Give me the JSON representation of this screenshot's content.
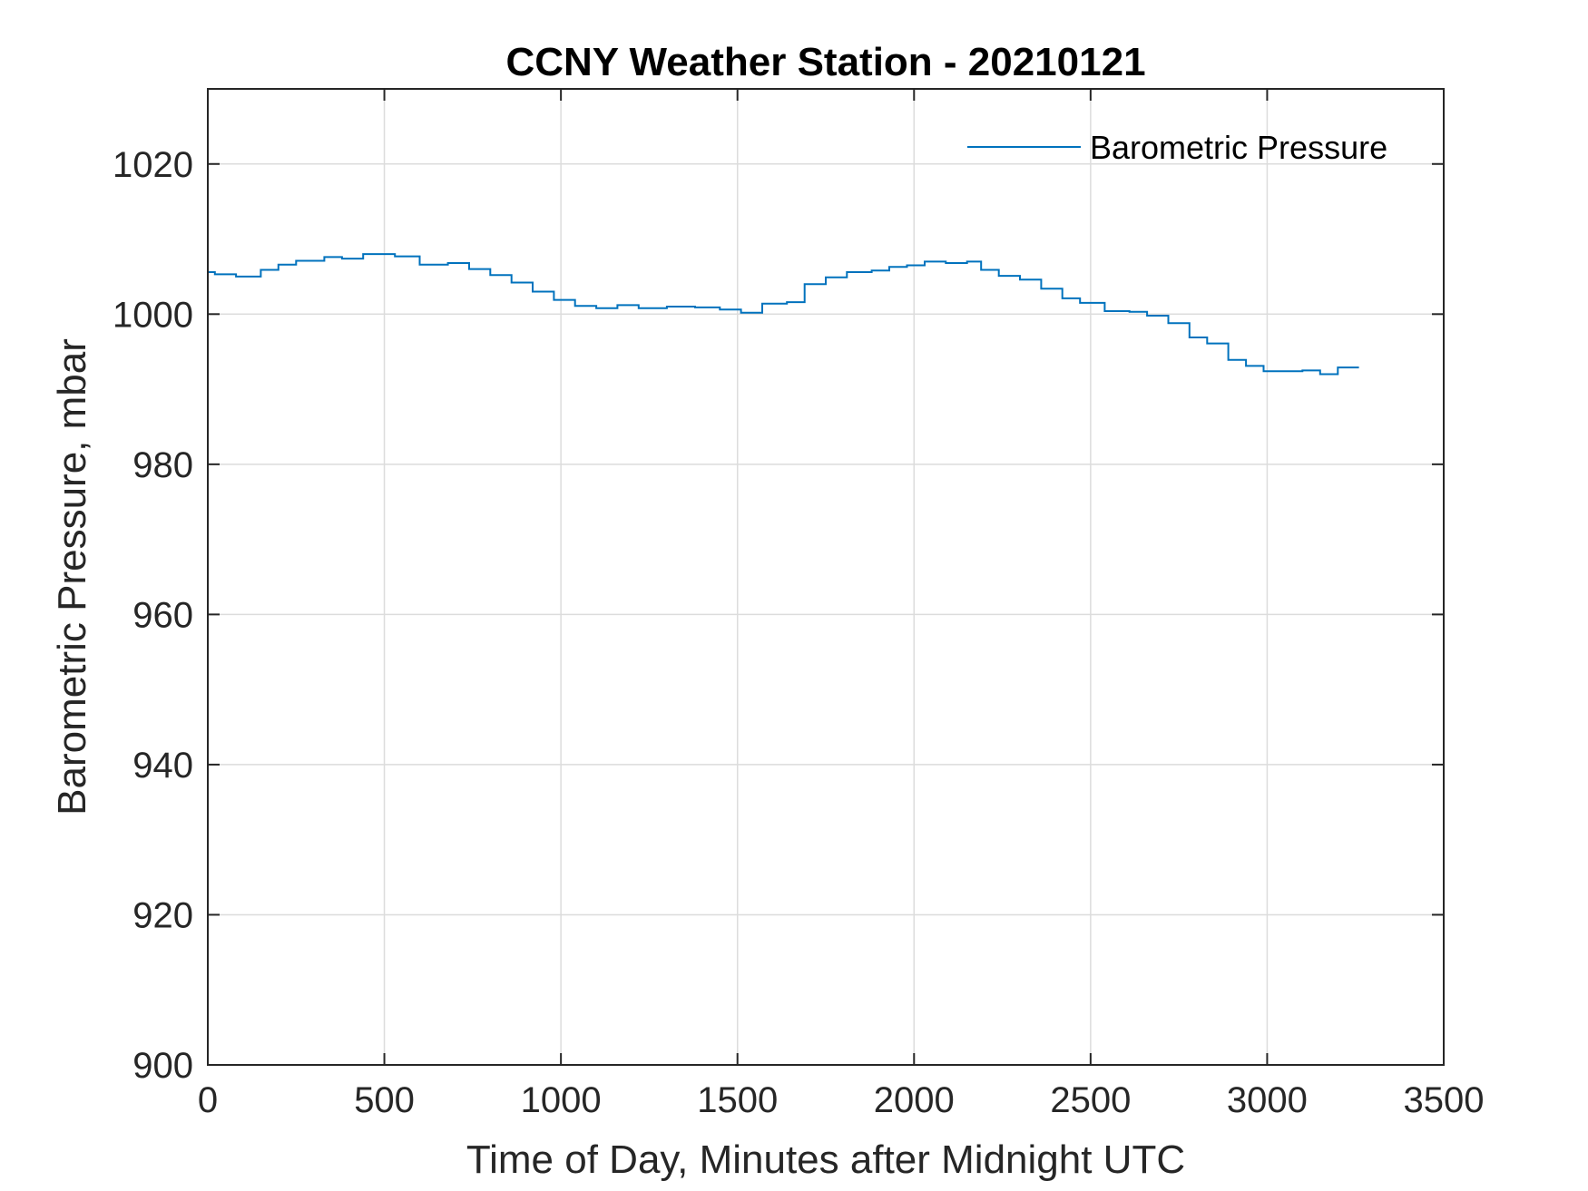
{
  "chart_data": {
    "type": "line",
    "title": "CCNY Weather Station - 20210121",
    "xlabel": "Time of Day, Minutes after Midnight UTC",
    "ylabel": "Barometric Pressure, mbar",
    "xlim": [
      0,
      3500
    ],
    "ylim": [
      900,
      1030
    ],
    "xticks": [
      0,
      500,
      1000,
      1500,
      2000,
      2500,
      3000,
      3500
    ],
    "yticks": [
      900,
      920,
      940,
      960,
      980,
      1000,
      1020
    ],
    "xtick_labels": [
      "0",
      "500",
      "1000",
      "1500",
      "2000",
      "2500",
      "3000",
      "3500"
    ],
    "ytick_labels": [
      "900",
      "920",
      "940",
      "960",
      "980",
      "1000",
      "1020"
    ],
    "grid": true,
    "legend_position": "top-right",
    "step": true,
    "series": [
      {
        "name": "Barometric Pressure",
        "color": "#0072BD",
        "x": [
          0,
          20,
          80,
          150,
          200,
          250,
          330,
          380,
          440,
          530,
          600,
          680,
          740,
          800,
          860,
          920,
          980,
          1040,
          1100,
          1160,
          1220,
          1300,
          1380,
          1450,
          1510,
          1570,
          1640,
          1690,
          1750,
          1810,
          1880,
          1930,
          1980,
          2030,
          2090,
          2150,
          2190,
          2240,
          2300,
          2360,
          2420,
          2470,
          2540,
          2610,
          2660,
          2720,
          2780,
          2830,
          2890,
          2940,
          2990,
          3040,
          3100,
          3150,
          3200,
          3260
        ],
        "y": [
          1005.6,
          1005.3,
          1005.0,
          1005.9,
          1006.6,
          1007.1,
          1007.6,
          1007.4,
          1008.0,
          1007.7,
          1006.6,
          1006.8,
          1006.0,
          1005.2,
          1004.2,
          1003.0,
          1001.9,
          1001.1,
          1000.8,
          1001.2,
          1000.8,
          1001.0,
          1000.9,
          1000.6,
          1000.2,
          1001.4,
          1001.6,
          1004.0,
          1004.9,
          1005.6,
          1005.8,
          1006.3,
          1006.5,
          1007.0,
          1006.8,
          1007.0,
          1005.9,
          1005.1,
          1004.6,
          1003.4,
          1002.1,
          1001.5,
          1000.4,
          1000.3,
          999.8,
          998.8,
          996.9,
          996.1,
          993.9,
          993.1,
          992.4,
          992.4,
          992.5,
          992.0,
          992.9,
          992.9
        ]
      }
    ]
  }
}
